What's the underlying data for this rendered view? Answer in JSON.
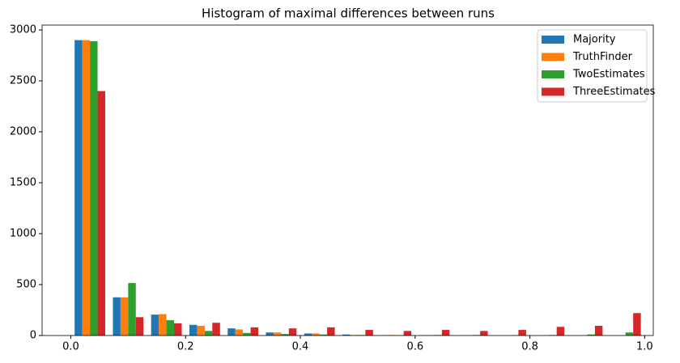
{
  "chart_data": {
    "type": "histogram",
    "title": "Histogram of maximal differences between runs",
    "bins": [
      0,
      0.0667,
      0.1333,
      0.2,
      0.2667,
      0.3333,
      0.4,
      0.4667,
      0.5333,
      0.6,
      0.6667,
      0.7333,
      0.8,
      0.8667,
      0.9333,
      1
    ],
    "series": [
      {
        "name": "Majority",
        "color": "#1f77b4",
        "values": [
          2900,
          375,
          205,
          105,
          70,
          30,
          20,
          10,
          3,
          2,
          1,
          0,
          0,
          0,
          0
        ]
      },
      {
        "name": "TruthFinder",
        "color": "#ff7f0e",
        "values": [
          2900,
          375,
          210,
          95,
          60,
          30,
          20,
          5,
          5,
          2,
          1,
          0,
          0,
          0,
          0
        ]
      },
      {
        "name": "TwoEstimates",
        "color": "#2ca02c",
        "values": [
          2890,
          515,
          150,
          45,
          25,
          15,
          10,
          5,
          2,
          5,
          5,
          2,
          5,
          10,
          30
        ]
      },
      {
        "name": "ThreeEstimates",
        "color": "#d62728",
        "values": [
          2400,
          180,
          120,
          125,
          80,
          70,
          80,
          55,
          45,
          55,
          45,
          55,
          85,
          95,
          220
        ]
      }
    ],
    "xlim": [
      -0.05,
      1.015
    ],
    "ylim": [
      0,
      3048
    ],
    "xticks": [
      {
        "value": 0,
        "label": "0.0"
      },
      0.2,
      0.4,
      0.6,
      0.8,
      {
        "value": 1,
        "label": "1.0"
      }
    ],
    "yticks": [
      0,
      500,
      1000,
      1500,
      2000,
      2500,
      3000
    ],
    "legend": "upper right"
  }
}
